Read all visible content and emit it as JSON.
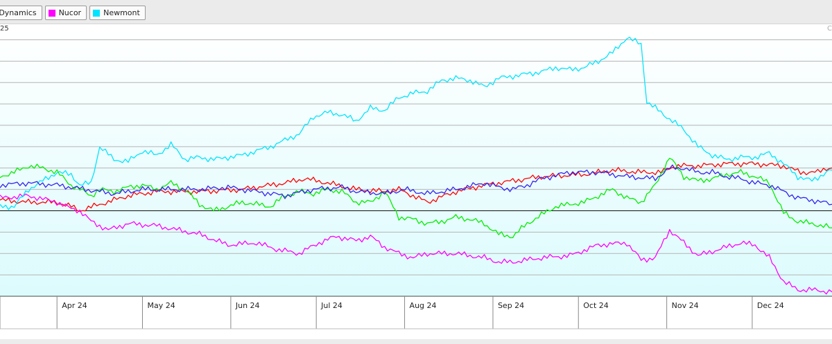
{
  "legend": {
    "items": [
      {
        "label": "Steel Dynamics",
        "visible_label": "el Dynamics",
        "color": "#ff0000"
      },
      {
        "label": "Nucor",
        "color": "#ff00ff"
      },
      {
        "label": "Newmont",
        "color": "#00e5ff"
      }
    ]
  },
  "y_top_label": "25",
  "corner_mark": "C",
  "chart_data": {
    "type": "line",
    "title": "",
    "xlabel": "",
    "ylabel": "",
    "x_tick_labels": [
      "Apr 24",
      "May 24",
      "Jun 24",
      "Jul 24",
      "Aug 24",
      "Sep 24",
      "Oct 24",
      "Nov 24",
      "Dec 24"
    ],
    "x_tick_days": [
      20,
      50,
      81,
      111,
      142,
      173,
      203,
      234,
      264
    ],
    "x_range_days": [
      0,
      292
    ],
    "ylim": [
      -40,
      85
    ],
    "baseline": 0,
    "grid": true,
    "series": [
      {
        "name": "Steel Dynamics",
        "color": "#ff0000",
        "points": [
          [
            0,
            5
          ],
          [
            10,
            4
          ],
          [
            20,
            4
          ],
          [
            25,
            2
          ],
          [
            28,
            0
          ],
          [
            35,
            3
          ],
          [
            45,
            7
          ],
          [
            55,
            9
          ],
          [
            70,
            9
          ],
          [
            85,
            10
          ],
          [
            100,
            13
          ],
          [
            107,
            15
          ],
          [
            115,
            13
          ],
          [
            125,
            10
          ],
          [
            135,
            9
          ],
          [
            140,
            10
          ],
          [
            145,
            7
          ],
          [
            150,
            4
          ],
          [
            160,
            9
          ],
          [
            170,
            12
          ],
          [
            180,
            14
          ],
          [
            190,
            16
          ],
          [
            205,
            17
          ],
          [
            215,
            19
          ],
          [
            225,
            18
          ],
          [
            232,
            18
          ],
          [
            237,
            21
          ],
          [
            245,
            21
          ],
          [
            255,
            22
          ],
          [
            265,
            22
          ],
          [
            275,
            21
          ],
          [
            281,
            18
          ],
          [
            287,
            18
          ],
          [
            290,
            20
          ],
          [
            292,
            20
          ]
        ]
      },
      {
        "name": "Nucor",
        "color": "#ff00ff",
        "points": [
          [
            0,
            6
          ],
          [
            10,
            7
          ],
          [
            20,
            4
          ],
          [
            25,
            1
          ],
          [
            28,
            0
          ],
          [
            32,
            -5
          ],
          [
            38,
            -9
          ],
          [
            45,
            -6
          ],
          [
            55,
            -7
          ],
          [
            70,
            -11
          ],
          [
            80,
            -16
          ],
          [
            90,
            -15
          ],
          [
            97,
            -18
          ],
          [
            105,
            -20
          ],
          [
            112,
            -15
          ],
          [
            118,
            -12
          ],
          [
            125,
            -14
          ],
          [
            130,
            -12
          ],
          [
            135,
            -17
          ],
          [
            140,
            -20
          ],
          [
            145,
            -22
          ],
          [
            150,
            -20
          ],
          [
            160,
            -20
          ],
          [
            170,
            -22
          ],
          [
            175,
            -24
          ],
          [
            180,
            -24
          ],
          [
            190,
            -22
          ],
          [
            200,
            -21
          ],
          [
            210,
            -16
          ],
          [
            220,
            -15
          ],
          [
            225,
            -23
          ],
          [
            230,
            -22
          ],
          [
            235,
            -9
          ],
          [
            240,
            -15
          ],
          [
            245,
            -21
          ],
          [
            250,
            -19
          ],
          [
            260,
            -15
          ],
          [
            265,
            -16
          ],
          [
            270,
            -22
          ],
          [
            275,
            -33
          ],
          [
            280,
            -37
          ],
          [
            285,
            -37
          ],
          [
            292,
            -38
          ]
        ]
      },
      {
        "name": "Newmont",
        "color": "#00e5ff",
        "points": [
          [
            0,
            2
          ],
          [
            5,
            2
          ],
          [
            10,
            10
          ],
          [
            15,
            14
          ],
          [
            20,
            18
          ],
          [
            25,
            17
          ],
          [
            28,
            12
          ],
          [
            32,
            13
          ],
          [
            35,
            30
          ],
          [
            40,
            24
          ],
          [
            45,
            23
          ],
          [
            50,
            28
          ],
          [
            55,
            26
          ],
          [
            60,
            31
          ],
          [
            65,
            24
          ],
          [
            70,
            25
          ],
          [
            75,
            24
          ],
          [
            80,
            25
          ],
          [
            85,
            26
          ],
          [
            90,
            28
          ],
          [
            95,
            30
          ],
          [
            100,
            33
          ],
          [
            105,
            36
          ],
          [
            110,
            44
          ],
          [
            115,
            46
          ],
          [
            120,
            45
          ],
          [
            125,
            42
          ],
          [
            130,
            48
          ],
          [
            135,
            47
          ],
          [
            140,
            53
          ],
          [
            145,
            55
          ],
          [
            150,
            56
          ],
          [
            155,
            61
          ],
          [
            160,
            62
          ],
          [
            165,
            61
          ],
          [
            170,
            58
          ],
          [
            175,
            62
          ],
          [
            180,
            63
          ],
          [
            185,
            64
          ],
          [
            190,
            65
          ],
          [
            195,
            67
          ],
          [
            200,
            66
          ],
          [
            205,
            67
          ],
          [
            210,
            70
          ],
          [
            215,
            74
          ],
          [
            220,
            81
          ],
          [
            225,
            78
          ],
          [
            227,
            51
          ],
          [
            230,
            48
          ],
          [
            235,
            43
          ],
          [
            240,
            38
          ],
          [
            245,
            30
          ],
          [
            250,
            26
          ],
          [
            255,
            24
          ],
          [
            260,
            25
          ],
          [
            265,
            25
          ],
          [
            270,
            27
          ],
          [
            275,
            22
          ],
          [
            280,
            16
          ],
          [
            285,
            14
          ],
          [
            290,
            18
          ],
          [
            292,
            19
          ]
        ]
      },
      {
        "name": "",
        "color": "#00ee00",
        "points": [
          [
            0,
            16
          ],
          [
            5,
            18
          ],
          [
            10,
            21
          ],
          [
            15,
            20
          ],
          [
            20,
            18
          ],
          [
            25,
            12
          ],
          [
            28,
            10
          ],
          [
            32,
            7
          ],
          [
            35,
            10
          ],
          [
            40,
            9
          ],
          [
            45,
            11
          ],
          [
            50,
            12
          ],
          [
            55,
            10
          ],
          [
            60,
            13
          ],
          [
            65,
            10
          ],
          [
            70,
            3
          ],
          [
            75,
            0
          ],
          [
            80,
            2
          ],
          [
            85,
            4
          ],
          [
            90,
            3
          ],
          [
            95,
            2
          ],
          [
            100,
            7
          ],
          [
            105,
            9
          ],
          [
            110,
            8
          ],
          [
            115,
            10
          ],
          [
            120,
            9
          ],
          [
            125,
            4
          ],
          [
            130,
            4
          ],
          [
            135,
            9
          ],
          [
            140,
            -3
          ],
          [
            145,
            -4
          ],
          [
            150,
            -6
          ],
          [
            155,
            -5
          ],
          [
            160,
            -3
          ],
          [
            165,
            -4
          ],
          [
            170,
            -6
          ],
          [
            175,
            -11
          ],
          [
            180,
            -12
          ],
          [
            185,
            -6
          ],
          [
            190,
            -2
          ],
          [
            195,
            2
          ],
          [
            200,
            3
          ],
          [
            205,
            4
          ],
          [
            210,
            7
          ],
          [
            215,
            10
          ],
          [
            220,
            6
          ],
          [
            225,
            4
          ],
          [
            230,
            12
          ],
          [
            235,
            25
          ],
          [
            240,
            16
          ],
          [
            245,
            14
          ],
          [
            250,
            15
          ],
          [
            255,
            17
          ],
          [
            260,
            18
          ],
          [
            265,
            16
          ],
          [
            270,
            13
          ],
          [
            275,
            -1
          ],
          [
            280,
            -5
          ],
          [
            285,
            -6
          ],
          [
            292,
            -8
          ]
        ]
      },
      {
        "name": "",
        "color": "#3322ee",
        "points": [
          [
            0,
            12
          ],
          [
            10,
            13
          ],
          [
            20,
            12
          ],
          [
            30,
            10
          ],
          [
            40,
            8
          ],
          [
            50,
            10
          ],
          [
            60,
            10
          ],
          [
            70,
            10
          ],
          [
            80,
            11
          ],
          [
            90,
            9
          ],
          [
            100,
            7
          ],
          [
            110,
            10
          ],
          [
            120,
            11
          ],
          [
            125,
            9
          ],
          [
            135,
            8
          ],
          [
            142,
            10
          ],
          [
            150,
            8
          ],
          [
            160,
            10
          ],
          [
            170,
            13
          ],
          [
            175,
            11
          ],
          [
            180,
            10
          ],
          [
            185,
            12
          ],
          [
            190,
            15
          ],
          [
            200,
            18
          ],
          [
            210,
            18
          ],
          [
            220,
            16
          ],
          [
            230,
            15
          ],
          [
            235,
            20
          ],
          [
            240,
            20
          ],
          [
            245,
            18
          ],
          [
            250,
            18
          ],
          [
            255,
            16
          ],
          [
            260,
            15
          ],
          [
            265,
            13
          ],
          [
            270,
            12
          ],
          [
            275,
            9
          ],
          [
            280,
            6
          ],
          [
            285,
            5
          ],
          [
            292,
            3
          ]
        ]
      }
    ]
  }
}
